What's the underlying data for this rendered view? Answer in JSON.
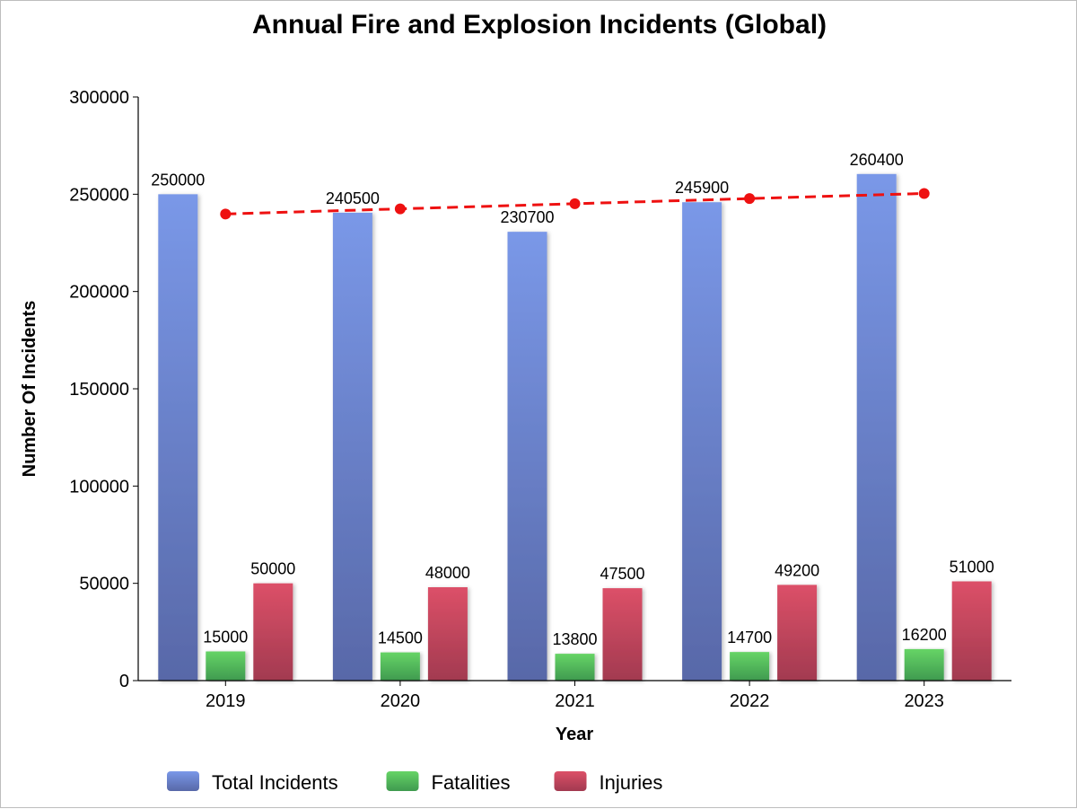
{
  "chart_data": {
    "type": "bar",
    "title": "Annual Fire and Explosion Incidents (Global)",
    "xlabel": "Year",
    "ylabel": "Number Of Incidents",
    "categories": [
      "2019",
      "2020",
      "2021",
      "2022",
      "2023"
    ],
    "ylim": [
      0,
      300000
    ],
    "yticks": [
      "0",
      "50000",
      "100000",
      "150000",
      "200000",
      "250000",
      "300000"
    ],
    "series": [
      {
        "name": "Total Incidents",
        "values": [
          250000,
          240500,
          230700,
          245900,
          260400
        ],
        "color": "#6f8fdf"
      },
      {
        "name": "Fatalities",
        "values": [
          15000,
          14500,
          13800,
          14700,
          16200
        ],
        "color": "#5cc25c"
      },
      {
        "name": "Injuries",
        "values": [
          50000,
          48000,
          47500,
          49200,
          51000
        ],
        "color": "#d24f64"
      }
    ],
    "trendline": {
      "style": "dashed",
      "color": "#ee1111",
      "values": [
        239850,
        242490,
        245130,
        247770,
        250410
      ]
    },
    "grid": false,
    "legend_position": "bottom"
  }
}
